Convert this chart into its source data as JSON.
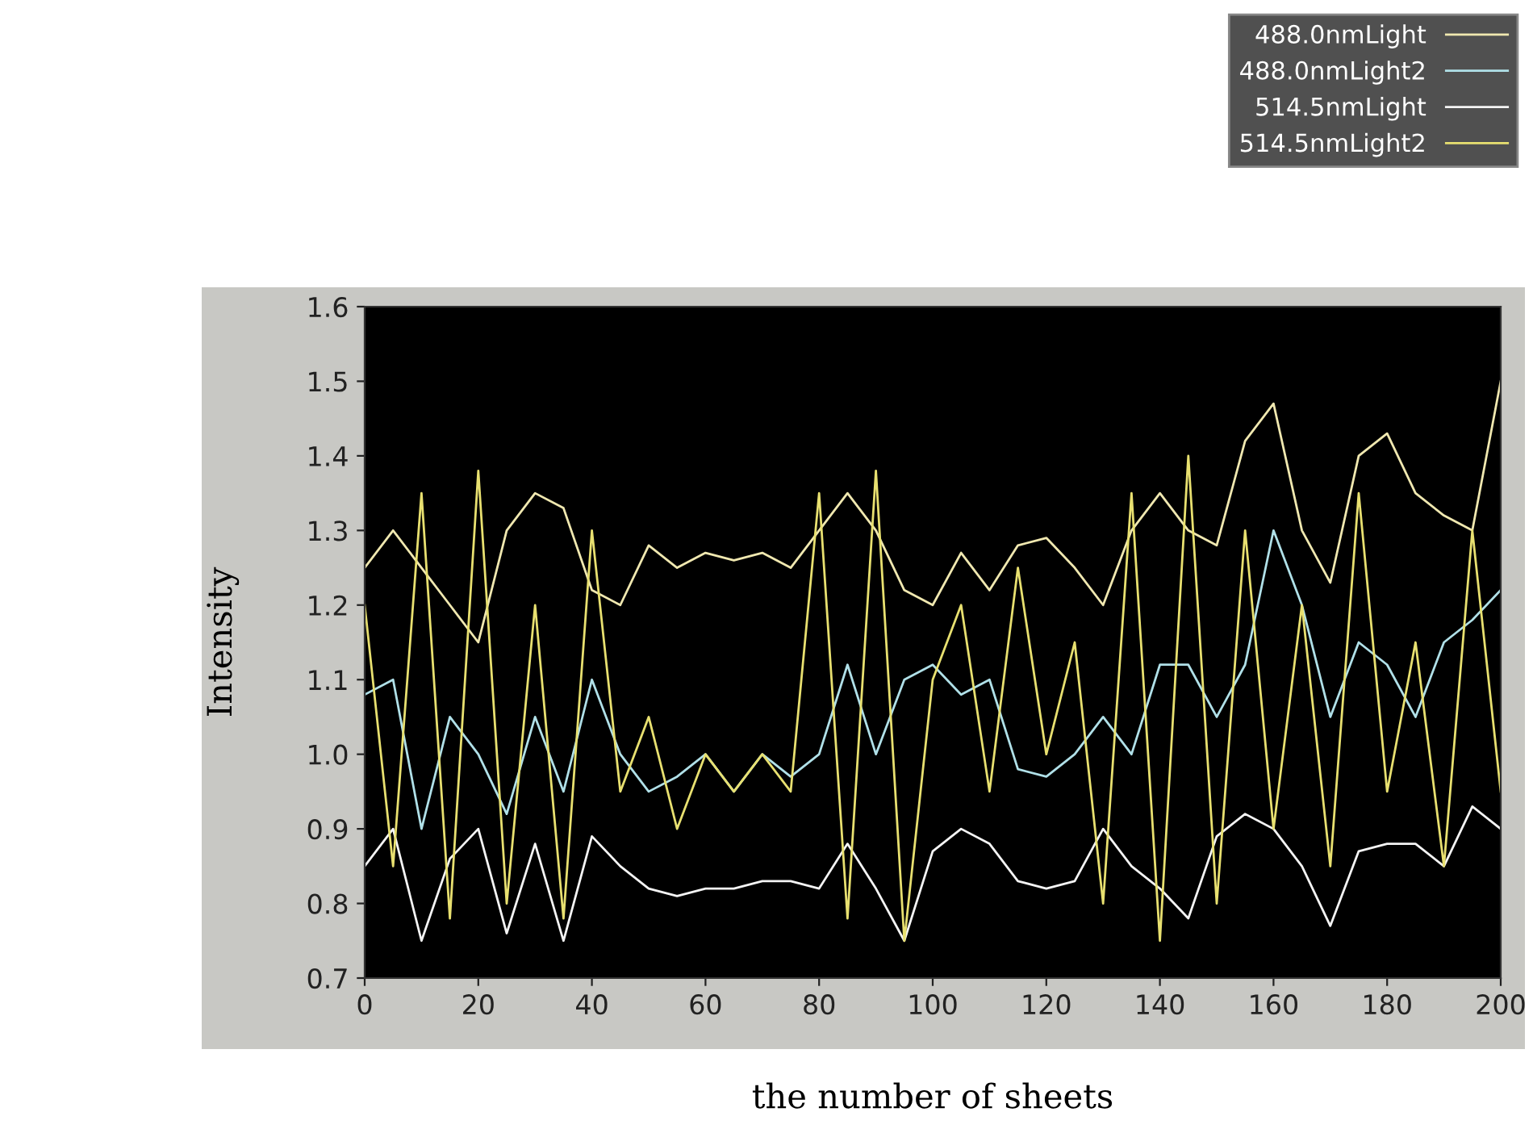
{
  "chart_data": {
    "type": "line",
    "xlabel": "the number of sheets",
    "ylabel": "Intensity",
    "xlim": [
      0,
      200
    ],
    "xticks": [
      0,
      20,
      40,
      60,
      80,
      100,
      120,
      140,
      160,
      180,
      200
    ],
    "ylim": [
      0.7,
      1.6
    ],
    "yticks": [
      0.7,
      0.8,
      0.9,
      {
        "value": 1.0,
        "label": "1.0"
      },
      1.1,
      1.2,
      1.3,
      1.4,
      1.5,
      1.6
    ],
    "grid": false,
    "legend": "top right",
    "marker": "none",
    "line_style": "solid",
    "x": [
      0,
      5,
      10,
      15,
      20,
      25,
      30,
      35,
      40,
      45,
      50,
      55,
      60,
      65,
      70,
      75,
      80,
      85,
      90,
      95,
      100,
      105,
      110,
      115,
      120,
      125,
      130,
      135,
      140,
      145,
      150,
      155,
      160,
      165,
      170,
      175,
      180,
      185,
      190,
      195,
      200
    ],
    "series": [
      {
        "name": "488.0nmLight",
        "color": "#f0e8b0",
        "values": [
          1.25,
          1.3,
          1.25,
          1.2,
          1.15,
          1.3,
          1.35,
          1.33,
          1.22,
          1.2,
          1.28,
          1.25,
          1.27,
          1.26,
          1.27,
          1.25,
          1.3,
          1.35,
          1.3,
          1.22,
          1.2,
          1.27,
          1.22,
          1.28,
          1.29,
          1.25,
          1.2,
          1.3,
          1.35,
          1.3,
          1.28,
          1.42,
          1.47,
          1.3,
          1.23,
          1.4,
          1.43,
          1.35,
          1.32,
          1.3,
          1.5
        ]
      },
      {
        "name": "488.0nmLight2",
        "color": "#b0e0e8",
        "values": [
          1.08,
          1.1,
          0.9,
          1.05,
          1.0,
          0.92,
          1.05,
          0.95,
          1.1,
          1.0,
          0.95,
          0.97,
          1.0,
          0.95,
          1.0,
          0.97,
          1.0,
          1.12,
          1.0,
          1.1,
          1.12,
          1.08,
          1.1,
          0.98,
          0.97,
          1.0,
          1.05,
          1.0,
          1.12,
          1.12,
          1.05,
          1.12,
          1.3,
          1.2,
          1.05,
          1.15,
          1.12,
          1.05,
          1.15,
          1.18,
          1.22
        ]
      },
      {
        "name": "514.5nmLight",
        "color": "#f4f4f4",
        "values": [
          0.85,
          0.9,
          0.75,
          0.86,
          0.9,
          0.76,
          0.88,
          0.75,
          0.89,
          0.85,
          0.82,
          0.81,
          0.82,
          0.82,
          0.83,
          0.83,
          0.82,
          0.88,
          0.82,
          0.75,
          0.87,
          0.9,
          0.88,
          0.83,
          0.82,
          0.83,
          0.9,
          0.85,
          0.82,
          0.78,
          0.89,
          0.92,
          0.9,
          0.85,
          0.77,
          0.87,
          0.88,
          0.88,
          0.85,
          0.93,
          0.9
        ]
      },
      {
        "name": "514.5nmLight2",
        "color": "#e8e070",
        "values": [
          1.2,
          0.85,
          1.35,
          0.78,
          1.38,
          0.8,
          1.2,
          0.78,
          1.3,
          0.95,
          1.05,
          0.9,
          1.0,
          0.95,
          1.0,
          0.95,
          1.35,
          0.78,
          1.38,
          0.75,
          1.1,
          1.2,
          0.95,
          1.25,
          1.0,
          1.15,
          0.8,
          1.35,
          0.75,
          1.4,
          0.8,
          1.3,
          0.9,
          1.2,
          0.85,
          1.35,
          0.95,
          1.15,
          0.85,
          1.3,
          0.95
        ]
      }
    ]
  }
}
